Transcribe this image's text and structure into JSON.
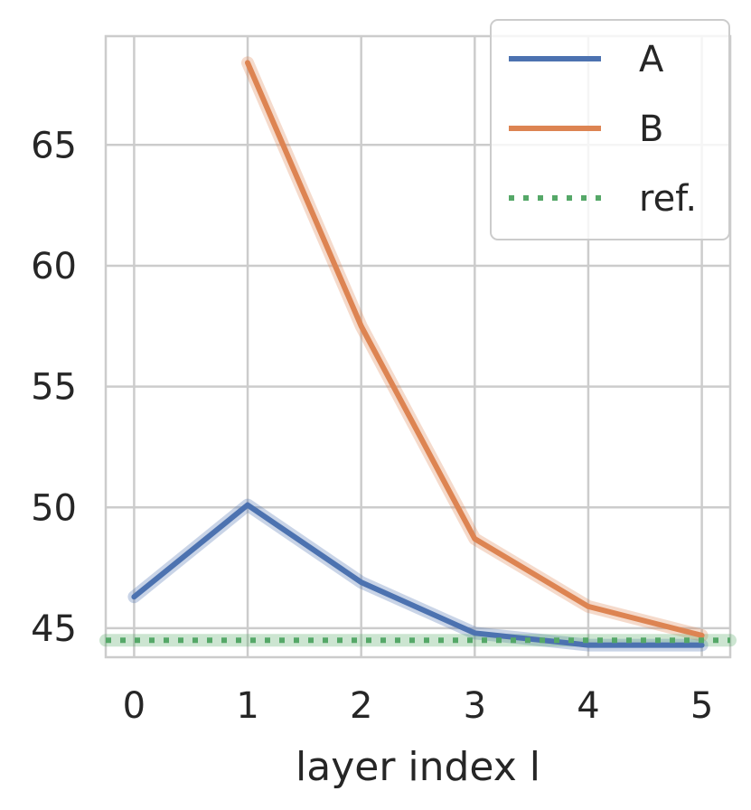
{
  "chart_data": {
    "type": "line",
    "title": "",
    "xlabel": "layer index l",
    "ylabel": "",
    "x": [
      0,
      1,
      2,
      3,
      4,
      5
    ],
    "xlim": [
      -0.25,
      5.25
    ],
    "ylim": [
      43.8,
      69.5
    ],
    "xticks": [
      "0",
      "1",
      "2",
      "3",
      "4",
      "5"
    ],
    "yticks": [
      45,
      50,
      55,
      60,
      65
    ],
    "grid": true,
    "legend_position": "top-right",
    "series": [
      {
        "name": "A",
        "color": "#4c72b0",
        "style": "solid",
        "band": true,
        "x": [
          0,
          1,
          2,
          3,
          4,
          5
        ],
        "values": [
          46.3,
          50.1,
          46.9,
          44.8,
          44.3,
          44.3
        ]
      },
      {
        "name": "B",
        "color": "#dd8452",
        "style": "solid",
        "band": true,
        "x": [
          1,
          2,
          3,
          4,
          5
        ],
        "values": [
          68.4,
          57.5,
          48.7,
          45.9,
          44.7
        ]
      },
      {
        "name": "ref.",
        "color": "#55a868",
        "style": "dotted",
        "band": true,
        "x": [
          -0.25,
          5.25
        ],
        "values": [
          44.5,
          44.5
        ]
      }
    ]
  }
}
